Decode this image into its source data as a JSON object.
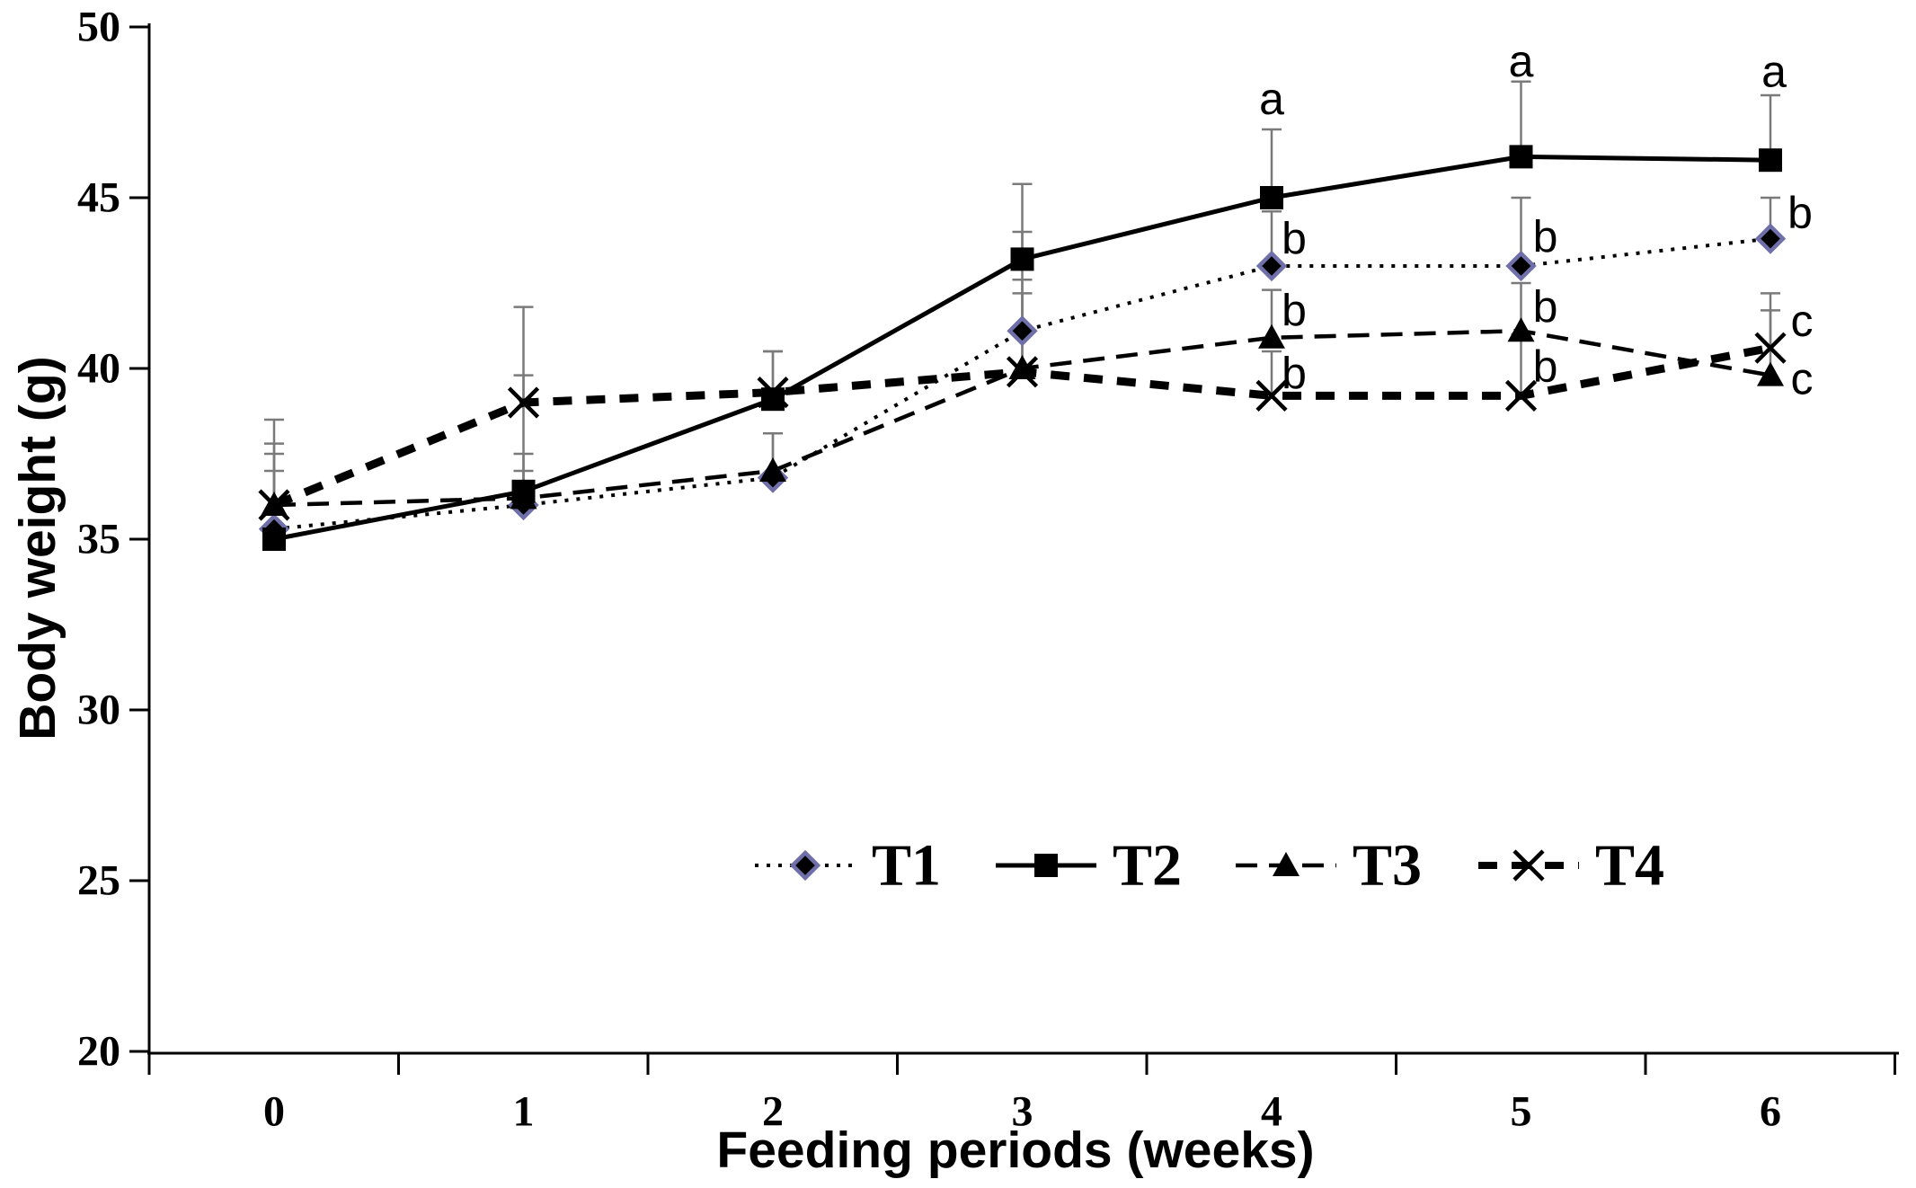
{
  "chart_data": {
    "type": "line",
    "title": "",
    "xlabel": "Feeding periods (weeks)",
    "ylabel": "Body weight (g)",
    "categories": [
      0,
      1,
      2,
      3,
      4,
      5,
      6
    ],
    "x_tick_labels": [
      "0",
      "1",
      "2",
      "3",
      "4",
      "5",
      "6"
    ],
    "ylim": [
      20,
      50
    ],
    "y_ticks": [
      50,
      45,
      40,
      35,
      30,
      25,
      20
    ],
    "grid": false,
    "legend_position": "inside-bottom-center",
    "error_bars": "upward",
    "colors": {
      "line": "#000000",
      "axis": "#000000",
      "error_bar": "#7a7a7a",
      "diamond_fill": "#000000",
      "diamond_stroke": "#6f6fa9",
      "text": "#000000",
      "background": "#ffffff"
    },
    "series": [
      {
        "name": "T1",
        "marker": "diamond",
        "line_style": "dotted",
        "line_width": 4,
        "values": [
          35.3,
          36.0,
          36.8,
          41.1,
          43.0,
          43.0,
          43.8
        ],
        "error_top": [
          37.5,
          37.0,
          38.1,
          44.0,
          44.6,
          45.0,
          45.0
        ]
      },
      {
        "name": "T2",
        "marker": "square",
        "line_style": "solid",
        "line_width": 5,
        "values": [
          35.0,
          36.4,
          39.1,
          43.2,
          45.0,
          46.2,
          46.1
        ],
        "error_top": [
          37.0,
          39.8,
          40.5,
          45.4,
          47.0,
          48.4,
          48.0
        ]
      },
      {
        "name": "T3",
        "marker": "triangle",
        "line_style": "dashed",
        "line_width": 4.5,
        "values": [
          36.0,
          36.2,
          37.0,
          40.0,
          40.9,
          41.1,
          39.8
        ],
        "error_top": [
          37.8,
          37.5,
          38.1,
          42.6,
          42.3,
          42.5,
          41.7
        ]
      },
      {
        "name": "T4",
        "marker": "x-cross",
        "line_style": "heavy-dashed",
        "line_width": 9,
        "values": [
          36.0,
          39.0,
          39.3,
          39.9,
          39.2,
          39.2,
          40.6
        ],
        "error_top": [
          38.5,
          41.8,
          40.5,
          42.2,
          40.5,
          41.0,
          42.2
        ]
      }
    ],
    "annotations": [
      {
        "text": "a",
        "week": 4,
        "dx": 0,
        "value": 47.9
      },
      {
        "text": "b",
        "week": 4,
        "dx": 25,
        "value": 43.8
      },
      {
        "text": "b",
        "week": 4,
        "dx": 25,
        "value": 41.7
      },
      {
        "text": "b",
        "week": 4,
        "dx": 25,
        "value": 39.85
      },
      {
        "text": "a",
        "week": 5,
        "dx": 0,
        "value": 49.0
      },
      {
        "text": "b",
        "week": 5,
        "dx": 27,
        "value": 43.85
      },
      {
        "text": "b",
        "week": 5,
        "dx": 27,
        "value": 41.8
      },
      {
        "text": "b",
        "week": 5,
        "dx": 27,
        "value": 40.05
      },
      {
        "text": "a",
        "week": 6,
        "dx": 4,
        "value": 48.7
      },
      {
        "text": "b",
        "week": 6,
        "dx": 33,
        "value": 44.55
      },
      {
        "text": "c",
        "week": 6,
        "dx": 35,
        "value": 41.4
      },
      {
        "text": "c",
        "week": 6,
        "dx": 35,
        "value": 39.7
      }
    ],
    "legend": [
      "T1",
      "T2",
      "T3",
      "T4"
    ]
  }
}
